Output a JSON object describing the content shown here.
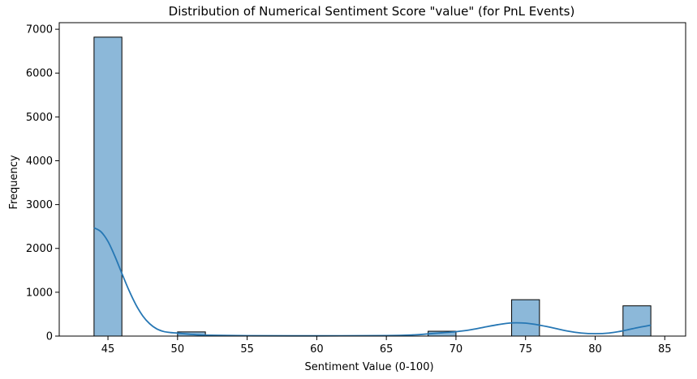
{
  "chart_data": {
    "type": "bar",
    "title": "Distribution of Numerical Sentiment Score \"value\" (for PnL Events)",
    "xlabel": "Sentiment Value (0-100)",
    "ylabel": "Frequency",
    "xlim": [
      41.5,
      86.5
    ],
    "ylim": [
      0,
      7150
    ],
    "xticks": [
      45,
      50,
      55,
      60,
      65,
      70,
      75,
      80,
      85
    ],
    "yticks": [
      0,
      1000,
      2000,
      3000,
      4000,
      5000,
      6000,
      7000
    ],
    "bins": [
      {
        "start": 44,
        "end": 46,
        "count": 6820
      },
      {
        "start": 50,
        "end": 52,
        "count": 95
      },
      {
        "start": 68,
        "end": 70,
        "count": 110
      },
      {
        "start": 74,
        "end": 76,
        "count": 830
      },
      {
        "start": 82,
        "end": 84,
        "count": 690
      }
    ],
    "kde": {
      "x": [
        44,
        44.5,
        45,
        45.5,
        46,
        46.5,
        47,
        47.5,
        48,
        48.5,
        49,
        49.5,
        50,
        51,
        52,
        55,
        60,
        65,
        67,
        68,
        69,
        70,
        71,
        72,
        73,
        74,
        75,
        76,
        77,
        78,
        79,
        80,
        81,
        82,
        83,
        84
      ],
      "y": [
        2470,
        2380,
        2160,
        1820,
        1430,
        1050,
        720,
        460,
        280,
        165,
        105,
        80,
        68,
        40,
        20,
        8,
        6,
        12,
        28,
        50,
        75,
        100,
        140,
        200,
        260,
        300,
        295,
        250,
        185,
        115,
        70,
        55,
        70,
        120,
        190,
        250
      ]
    },
    "grid": false,
    "colors": {
      "bar_fill": "#8cb8d9",
      "bar_edge": "#000000",
      "kde_line": "#2677b4"
    }
  }
}
